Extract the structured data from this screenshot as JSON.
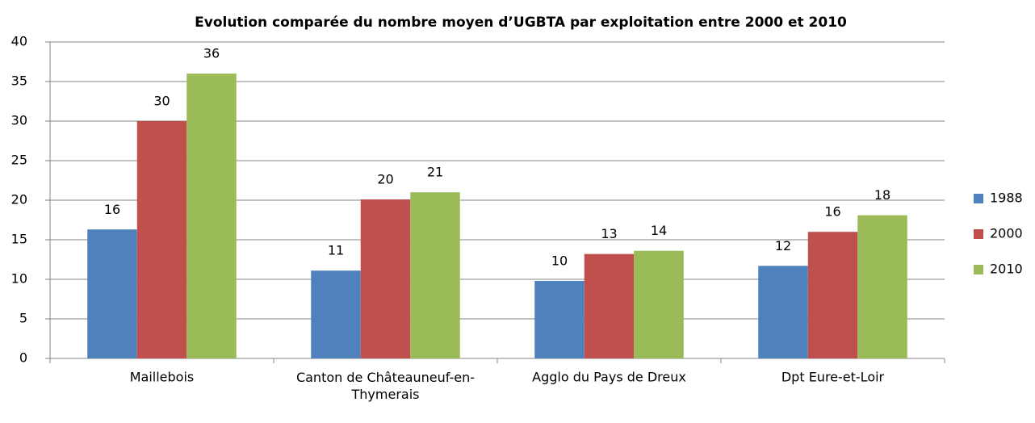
{
  "chart_data": {
    "type": "bar",
    "title": "Evolution comparée du nombre moyen  d’UGBTA par exploitation entre 2000 et 2010",
    "categories": [
      "Maillebois",
      "Canton de Châteauneuf-en-Thymerais",
      "Agglo du Pays de Dreux",
      "Dpt Eure-et-Loir"
    ],
    "series": [
      {
        "name": "1988",
        "color": "#4f81bd",
        "values": [
          16.3,
          11.1,
          9.8,
          11.7
        ],
        "value_labels": [
          "16",
          "11",
          "10",
          "12"
        ]
      },
      {
        "name": "2000",
        "color": "#c0504d",
        "values": [
          30,
          20.1,
          13.2,
          16
        ],
        "value_labels": [
          "30",
          "20",
          "13",
          "16"
        ]
      },
      {
        "name": "2010",
        "color": "#9bbb59",
        "values": [
          36,
          21,
          13.6,
          18.1
        ],
        "value_labels": [
          "36",
          "21",
          "14",
          "18"
        ]
      }
    ],
    "ylim": [
      0,
      40
    ],
    "yticks": [
      0,
      5,
      10,
      15,
      20,
      25,
      30,
      35,
      40
    ],
    "grid": true,
    "legend": "right"
  }
}
